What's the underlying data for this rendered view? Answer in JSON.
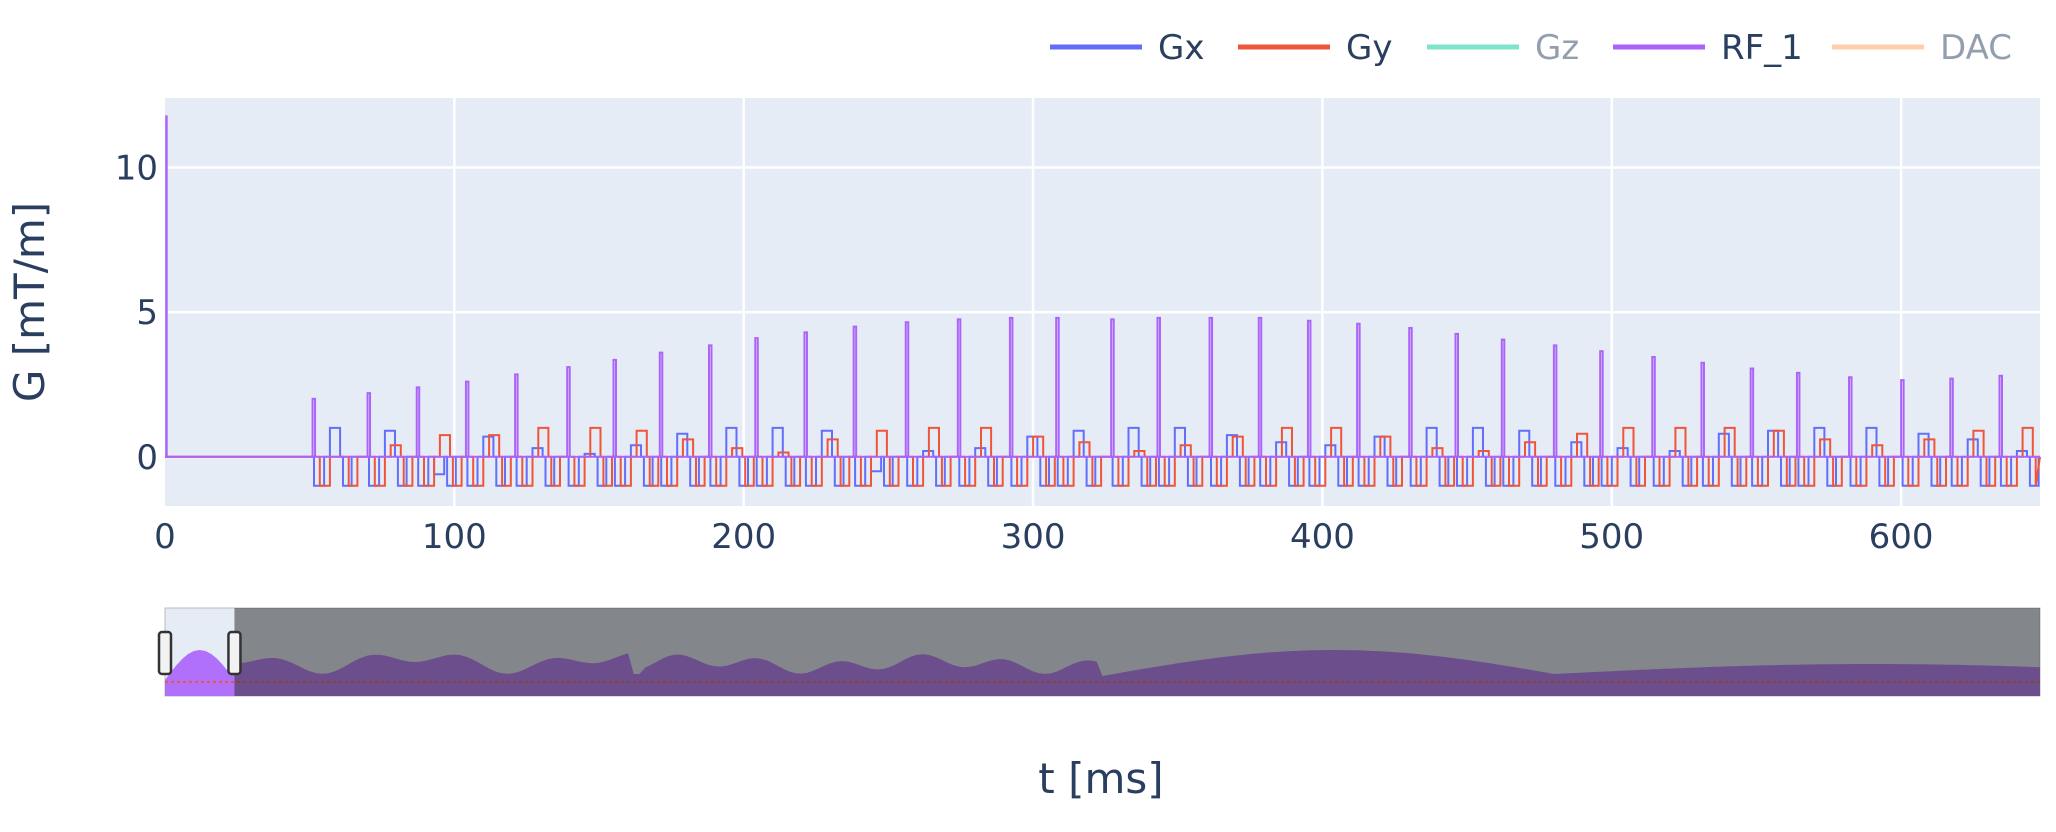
{
  "chart_data": {
    "type": "line",
    "xlabel": "t [ms]",
    "ylabel": "G [mT/m]",
    "xlim": [
      0,
      648
    ],
    "ylim": [
      -1.7,
      12.4
    ],
    "x_ticks": [
      0,
      100,
      200,
      300,
      400,
      500,
      600
    ],
    "y_ticks": [
      0,
      5,
      10
    ],
    "grid": true,
    "legend_position": "top-right",
    "legend": [
      {
        "name": "Gx",
        "color": "#636efa",
        "visible": true
      },
      {
        "name": "Gy",
        "color": "#ef553b",
        "visible": true
      },
      {
        "name": "Gz",
        "color": "#00cc96",
        "visible": false
      },
      {
        "name": "RF_1",
        "color": "#ab63fa",
        "visible": true
      },
      {
        "name": "DAC",
        "color": "#ffa15a",
        "visible": false
      }
    ],
    "rf_initial_pulse": {
      "t": 0.5,
      "amplitude": 11.8
    },
    "series": [
      {
        "name": "RF_1",
        "pulse_times": [
          51,
          70,
          87,
          104,
          121,
          139,
          155,
          171,
          188,
          204,
          221,
          238,
          256,
          274,
          292,
          308,
          327,
          343,
          361,
          378,
          395,
          412,
          430,
          446,
          462,
          480,
          496,
          514,
          531,
          548,
          564,
          582,
          600,
          617,
          634
        ],
        "amplitudes": [
          2.0,
          2.2,
          2.4,
          2.6,
          2.85,
          3.1,
          3.35,
          3.6,
          3.85,
          4.1,
          4.3,
          4.5,
          4.65,
          4.75,
          4.8,
          4.8,
          4.75,
          4.8,
          4.8,
          4.8,
          4.7,
          4.6,
          4.45,
          4.25,
          4.05,
          3.85,
          3.65,
          3.45,
          3.25,
          3.05,
          2.9,
          2.75,
          2.65,
          2.7,
          2.8
        ]
      },
      {
        "name": "Gx",
        "amplitudes": [
          1.0,
          0.9,
          -0.6,
          0.7,
          0.3,
          0.1,
          0.4,
          0.8,
          1.0,
          1.0,
          0.9,
          -0.5,
          0.2,
          0.3,
          0.7,
          0.9,
          1.0,
          1.0,
          0.75,
          0.5,
          0.4,
          0.7,
          1.0,
          1.0,
          0.9,
          0.5,
          0.3,
          0.2,
          0.8,
          0.9,
          1.0,
          1.0,
          0.8,
          0.6,
          0.2
        ]
      },
      {
        "name": "Gy",
        "amplitudes": [
          0.0,
          0.4,
          0.75,
          0.75,
          1.0,
          1.0,
          0.9,
          0.6,
          0.3,
          0.15,
          0.6,
          0.9,
          1.0,
          1.0,
          0.7,
          0.5,
          0.2,
          0.4,
          0.7,
          1.0,
          1.0,
          0.7,
          0.3,
          0.2,
          0.5,
          0.8,
          1.0,
          1.0,
          1.0,
          0.9,
          0.6,
          0.4,
          0.6,
          0.9,
          1.0
        ]
      }
    ],
    "range_selector": {
      "x_start": 0,
      "x_end": 24
    }
  }
}
